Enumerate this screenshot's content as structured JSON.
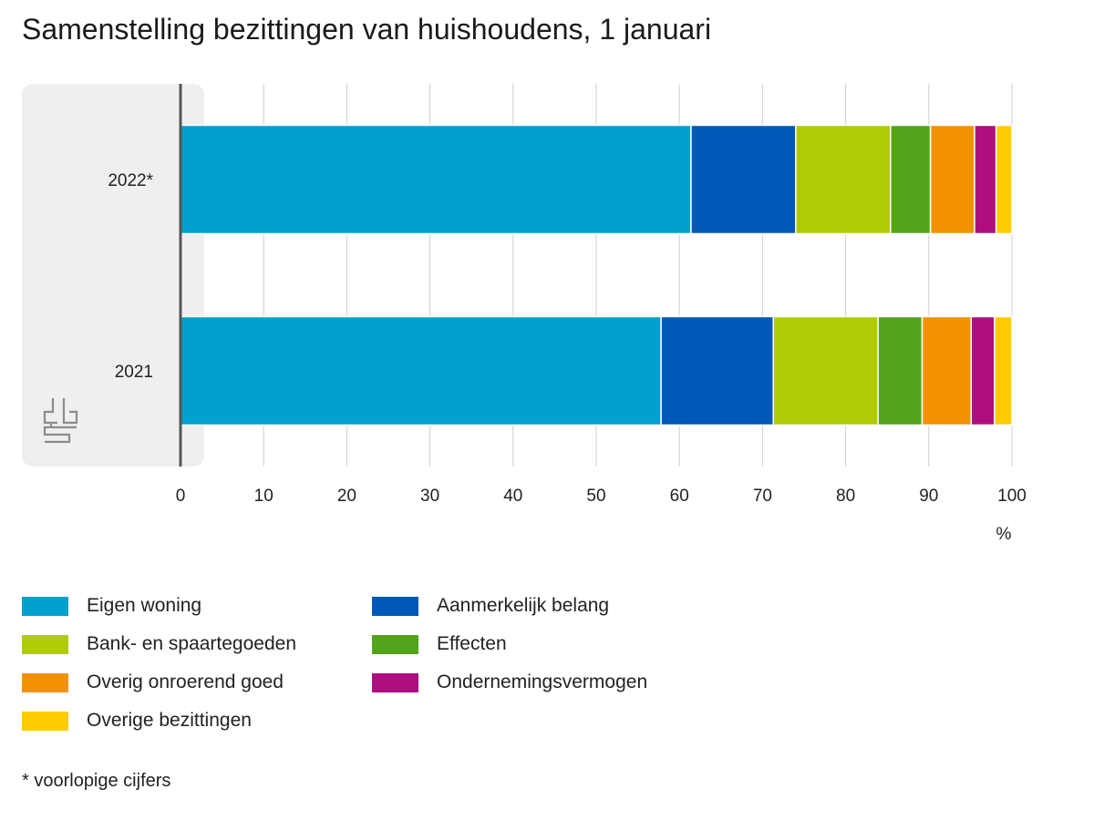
{
  "title": "Samenstelling bezittingen van huishoudens, 1 januari",
  "footnote": "* voorlopige cijfers",
  "logo": "cbs-logo",
  "chart_data": {
    "type": "bar",
    "orientation": "horizontal",
    "stacked": true,
    "title": "Samenstelling bezittingen van huishoudens, 1 januari",
    "xlabel": "%",
    "ylabel": "",
    "xlim": [
      0,
      100
    ],
    "xticks": [
      0,
      10,
      20,
      30,
      40,
      50,
      60,
      70,
      80,
      90,
      100
    ],
    "grid": true,
    "legend_position": "bottom",
    "categories": [
      "2022*",
      "2021"
    ],
    "series": [
      {
        "name": "Eigen woning",
        "color": "#00A1CD",
        "values": [
          61.4,
          57.8
        ]
      },
      {
        "name": "Aanmerkelijk belang",
        "color": "#0058B8",
        "values": [
          12.6,
          13.5
        ]
      },
      {
        "name": "Bank- en spaartegoeden",
        "color": "#AFCB05",
        "values": [
          11.4,
          12.6
        ]
      },
      {
        "name": "Effecten",
        "color": "#53A31D",
        "values": [
          4.8,
          5.3
        ]
      },
      {
        "name": "Overig onroerend goed",
        "color": "#F39200",
        "values": [
          5.3,
          5.9
        ]
      },
      {
        "name": "Ondernemingsvermogen",
        "color": "#AF0E80",
        "values": [
          2.6,
          2.8
        ]
      },
      {
        "name": "Overige bezittingen",
        "color": "#FFCC00",
        "values": [
          1.9,
          2.1
        ]
      }
    ]
  }
}
